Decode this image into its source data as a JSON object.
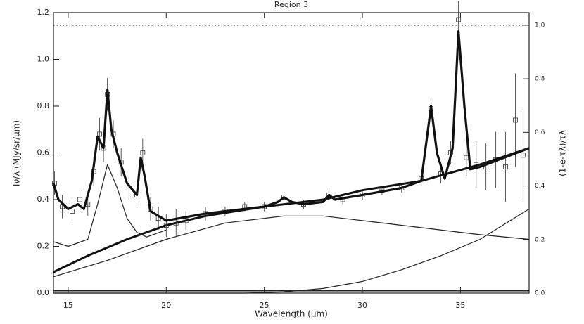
{
  "chart_data": {
    "type": "line",
    "title": "Region 3",
    "xlabel": "Wavelength (μm)",
    "ylabel": "Iν/λ (MJy/sr/μm)",
    "y2label": "(1-e-τλ)/τλ",
    "xlim": [
      14.25,
      38.5
    ],
    "xticks": [
      15,
      20,
      25,
      30,
      35
    ],
    "ylim": [
      0,
      1.2
    ],
    "yticks": [
      {
        "value": 0,
        "label": "0.0"
      },
      0.2,
      0.4,
      0.6,
      0.8,
      {
        "value": 1,
        "label": "1.0"
      },
      1.2
    ],
    "y2lim": [
      0,
      1.047
    ],
    "y2ticks": [
      {
        "value": 0,
        "label": "0.0"
      },
      0.2,
      0.4,
      0.6,
      0.8,
      {
        "value": 1,
        "label": "1.0"
      }
    ],
    "series": [
      {
        "mark": "errorbar",
        "color": "#333333",
        "x": [
          14.3,
          14.7,
          15.2,
          15.6,
          16.0,
          16.3,
          16.6,
          16.8,
          17.0,
          17.3,
          17.7,
          18.1,
          18.5,
          18.8,
          19.2,
          19.6,
          20.0,
          20.5,
          21.0,
          22,
          23,
          24,
          25,
          26,
          27,
          28.3,
          29,
          30,
          31,
          32,
          33,
          33.5,
          34,
          34.5,
          34.9,
          35.3,
          35.8,
          36.3,
          36.8,
          37.3,
          37.8,
          38.2
        ],
        "values": [
          0.47,
          0.37,
          0.35,
          0.4,
          0.38,
          0.52,
          0.68,
          0.62,
          0.85,
          0.68,
          0.56,
          0.45,
          0.42,
          0.6,
          0.36,
          0.32,
          0.29,
          0.3,
          0.31,
          0.34,
          0.35,
          0.37,
          0.37,
          0.41,
          0.38,
          0.42,
          0.4,
          0.42,
          0.44,
          0.45,
          0.49,
          0.79,
          0.51,
          0.6,
          1.17,
          0.58,
          0.55,
          0.54,
          0.57,
          0.54,
          0.74,
          0.59
        ],
        "errors": [
          0.05,
          0.05,
          0.05,
          0.05,
          0.05,
          0.06,
          0.07,
          0.06,
          0.07,
          0.06,
          0.06,
          0.05,
          0.05,
          0.06,
          0.05,
          0.05,
          0.05,
          0.06,
          0.04,
          0.03,
          0.02,
          0.02,
          0.02,
          0.02,
          0.02,
          0.02,
          0.02,
          0.02,
          0.02,
          0.02,
          0.03,
          0.05,
          0.04,
          0.05,
          0.08,
          0.08,
          0.1,
          0.1,
          0.12,
          0.15,
          0.2,
          0.2
        ]
      },
      {
        "mark": "line",
        "color": "#111111",
        "line_width": 3.2,
        "x": [
          14.25,
          14.5,
          15,
          15.5,
          15.8,
          16.2,
          16.5,
          16.8,
          17.0,
          17.2,
          17.5,
          18,
          18.5,
          18.7,
          18.9,
          19.2,
          20,
          22,
          25,
          25.7,
          26.0,
          26.4,
          27,
          28,
          28.3,
          28.6,
          30,
          32,
          33,
          33.5,
          33.8,
          34.2,
          34.6,
          34.9,
          35.2,
          35.5,
          36,
          38.5
        ],
        "values": [
          0.47,
          0.4,
          0.36,
          0.38,
          0.36,
          0.48,
          0.67,
          0.62,
          0.87,
          0.7,
          0.6,
          0.47,
          0.42,
          0.58,
          0.5,
          0.35,
          0.31,
          0.34,
          0.37,
          0.39,
          0.41,
          0.39,
          0.38,
          0.39,
          0.42,
          0.4,
          0.42,
          0.45,
          0.48,
          0.8,
          0.6,
          0.49,
          0.62,
          1.12,
          0.8,
          0.53,
          0.54,
          0.62
        ]
      },
      {
        "mark": "line",
        "color": "#111111",
        "line_width": 3,
        "x": [
          14.25,
          15,
          16,
          18,
          20,
          22,
          25,
          28,
          30,
          33,
          36,
          38.5
        ],
        "values": [
          0.09,
          0.12,
          0.16,
          0.23,
          0.29,
          0.33,
          0.37,
          0.4,
          0.44,
          0.48,
          0.55,
          0.62
        ]
      },
      {
        "mark": "line",
        "color": "#222222",
        "line_width": 1.2,
        "x": [
          14.25,
          17,
          20,
          23,
          26,
          28,
          30,
          33,
          36,
          38.5
        ],
        "values": [
          0.07,
          0.14,
          0.23,
          0.3,
          0.33,
          0.33,
          0.31,
          0.28,
          0.25,
          0.23
        ]
      },
      {
        "mark": "line",
        "color": "#222222",
        "line_width": 1.2,
        "x": [
          14.25,
          24,
          26,
          28,
          30,
          32,
          34,
          36,
          38.5
        ],
        "values": [
          0,
          0,
          0.005,
          0.02,
          0.05,
          0.1,
          0.16,
          0.23,
          0.36
        ]
      },
      {
        "mark": "line",
        "color": "#222222",
        "line_width": 1.2,
        "x": [
          14.25,
          15,
          16,
          16.5,
          17,
          17.5,
          18,
          18.5,
          19,
          20
        ],
        "values": [
          0.22,
          0.2,
          0.23,
          0.38,
          0.55,
          0.45,
          0.32,
          0.26,
          0.24,
          0.27
        ]
      },
      {
        "mark": "line",
        "color": "#222222",
        "line_width": 1.5,
        "x": [
          14.25,
          38.5
        ],
        "values": [
          0.01,
          0.01
        ]
      },
      {
        "mark": "line",
        "axis": "y2",
        "dotted": true,
        "color": "#222222",
        "line_width": 1.2,
        "x": [
          14.25,
          38.5
        ],
        "values": [
          1.0,
          1.0
        ]
      }
    ]
  }
}
